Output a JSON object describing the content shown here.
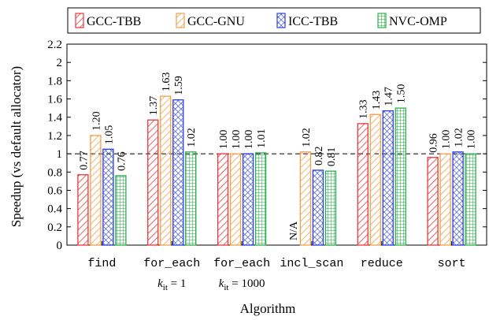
{
  "chart_data": {
    "type": "bar",
    "xlabel": "Algorithm",
    "ylabel": "Speedup (vs default allocator)",
    "ylim": [
      0,
      2.2
    ],
    "yticks": [
      "0",
      "0.2",
      "0.4",
      "0.6",
      "0.8",
      "1",
      "1.2",
      "1.4",
      "1.6",
      "1.8",
      "2",
      "2.2"
    ],
    "reference_line": 1,
    "legend_position": "top",
    "categories": [
      "find",
      "for_each",
      "for_each",
      "incl_scan",
      "reduce",
      "sort"
    ],
    "category_sublabels": [
      {
        "category_index": 1,
        "symbol": "k",
        "subscript": "it",
        "value": "= 1"
      },
      {
        "category_index": 2,
        "symbol": "k",
        "subscript": "it",
        "value": "= 1000"
      }
    ],
    "series": [
      {
        "name": "GCC-TBB",
        "color": "#e8373b",
        "pattern": "diagonal-lines",
        "values": [
          0.77,
          1.37,
          1.0,
          null,
          1.33,
          0.96
        ],
        "labels": [
          "0.77",
          "1.37",
          "1.00",
          "N/A",
          "1.33",
          "0.96"
        ]
      },
      {
        "name": "GCC-GNU",
        "color": "#f0a04b",
        "pattern": "diagonal-lines",
        "values": [
          1.2,
          1.63,
          1.0,
          1.02,
          1.43,
          1.0
        ],
        "labels": [
          "1.20",
          "1.63",
          "1.00",
          "1.02",
          "1.43",
          "1.00"
        ]
      },
      {
        "name": "ICC-TBB",
        "color": "#2b3de0",
        "pattern": "crosshatch",
        "values": [
          1.05,
          1.59,
          1.0,
          0.82,
          1.47,
          1.02
        ],
        "labels": [
          "1.05",
          "1.59",
          "1.00",
          "0.82",
          "1.47",
          "1.02"
        ]
      },
      {
        "name": "NVC-OMP",
        "color": "#2bb04a",
        "pattern": "grid",
        "values": [
          0.76,
          1.02,
          1.01,
          0.81,
          1.5,
          1.0
        ],
        "labels": [
          "0.76",
          "1.02",
          "1.01",
          "0.81",
          "1.50",
          "1.00"
        ]
      }
    ]
  }
}
